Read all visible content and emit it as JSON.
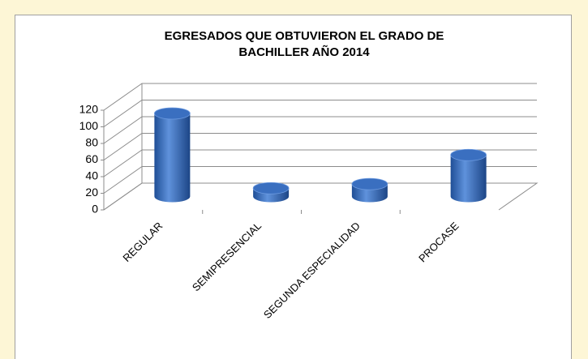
{
  "chart_data": {
    "type": "bar3d",
    "title": [
      "EGRESADOS  QUE OBTUVIERON  EL GRADO DE",
      "BACHILLER  AÑO 2014"
    ],
    "categories": [
      "REGULAR",
      "SEMIPRESENCIAL",
      "SEGUNDA ESPECIALIDAD",
      "PROCASE"
    ],
    "values": [
      100,
      10,
      15,
      50
    ],
    "color": "#3a6fc0",
    "ylim": [
      0,
      120
    ],
    "yticks": [
      0,
      20,
      40,
      60,
      80,
      100,
      120
    ],
    "grid": true
  }
}
